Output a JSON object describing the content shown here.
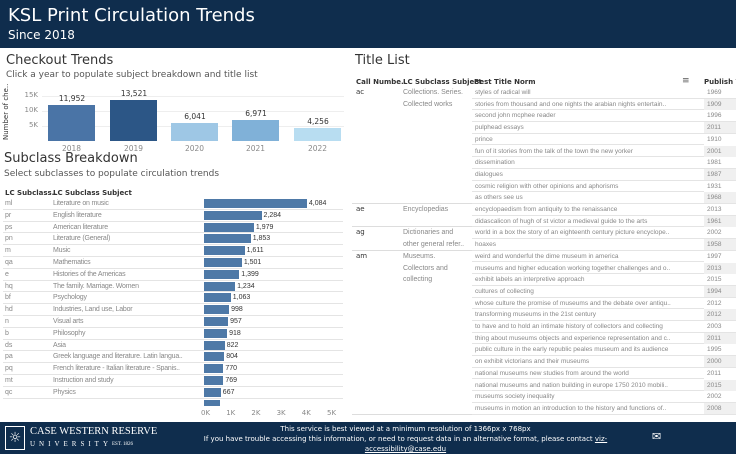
{
  "header": {
    "title": "KSL Print Circulation Trends",
    "subtitle": "Since 2018"
  },
  "checkout": {
    "title": "Checkout Trends",
    "subtitle": "Click a year to populate subject breakdown and title list"
  },
  "chart_data": [
    {
      "type": "bar",
      "title": "Checkout Trends",
      "ylabel": "Number of che..",
      "categories": [
        "2018",
        "2019",
        "2020",
        "2021",
        "2022"
      ],
      "values": [
        11952,
        13521,
        6041,
        6971,
        4256
      ],
      "value_labels": [
        "11,952",
        "13,521",
        "6,041",
        "6,971",
        "4,256"
      ],
      "colors": [
        "#4a74a6",
        "#2c5686",
        "#9ec7e5",
        "#80b1d8",
        "#b8ddf1"
      ],
      "yticks": [
        "5K",
        "10K",
        "15K"
      ],
      "ylim": [
        0,
        16000
      ]
    },
    {
      "type": "bar",
      "orientation": "horizontal",
      "title": "Subclass Breakdown",
      "xticks": [
        "0K",
        "1K",
        "2K",
        "3K",
        "4K",
        "5K"
      ],
      "xlim": [
        0,
        5000
      ],
      "columns": [
        "LC Subclass..",
        "LC Subclass Subject"
      ],
      "rows": [
        [
          "ml",
          "Literature on music",
          4084,
          "4,084"
        ],
        [
          "pr",
          "English literature",
          2284,
          "2,284"
        ],
        [
          "ps",
          "American literature",
          1979,
          "1,979"
        ],
        [
          "pn",
          "Literature (General)",
          1853,
          "1,853"
        ],
        [
          "m",
          "Music",
          1611,
          "1,611"
        ],
        [
          "qa",
          "Mathematics",
          1501,
          "1,501"
        ],
        [
          "e",
          "Histories of the Americas",
          1399,
          "1,399"
        ],
        [
          "hq",
          "The family. Marriage. Women",
          1234,
          "1,234"
        ],
        [
          "bf",
          "Psychology",
          1063,
          "1,063"
        ],
        [
          "hd",
          "Industries, Land use, Labor",
          998,
          "998"
        ],
        [
          "n",
          "Visual arts",
          957,
          "957"
        ],
        [
          "b",
          "Philosophy",
          918,
          "918"
        ],
        [
          "ds",
          "Asia",
          822,
          "822"
        ],
        [
          "pa",
          "Greek language and literature. Latin langua..",
          804,
          "804"
        ],
        [
          "pq",
          "French literature - Italian literature - Spanis..",
          770,
          "770"
        ],
        [
          "mt",
          "Instruction and study",
          769,
          "769"
        ],
        [
          "qc",
          "Physics",
          667,
          "667"
        ]
      ]
    }
  ],
  "subclass": {
    "title": "Subclass Breakdown",
    "subtitle": "Select subclasses to populate circulation trends"
  },
  "titles": {
    "title": "Title List",
    "columns": [
      "Call Numbe..",
      "LC Subclass Subject",
      "Best Title Norm",
      "Publish Ye"
    ],
    "groups": [
      {
        "code": "ac",
        "subject": [
          "Collections.  Series.",
          "Collected works"
        ],
        "rows": [
          [
            "styles of radical will",
            "1969"
          ],
          [
            "stories from thousand and one nights the arabian nights entertain..",
            "1909"
          ],
          [
            "second john mcphee reader",
            "1996"
          ],
          [
            "pulphead essays",
            "2011"
          ],
          [
            "prince",
            "1910"
          ],
          [
            "fun of it stories from the talk of the town the new yorker",
            "2001"
          ],
          [
            "dissemination",
            "1981"
          ],
          [
            "dialogues",
            "1987"
          ],
          [
            "cosmic religion with other opinions and aphorisms",
            "1931"
          ],
          [
            "as others see us",
            "1968"
          ]
        ]
      },
      {
        "code": "ae",
        "subject": [
          "Encyclopedias"
        ],
        "rows": [
          [
            "encyclopaedism from antiquity to the renaissance",
            "2013"
          ],
          [
            "didascalicon of hugh of st victor a medieval guide to the arts",
            "1961"
          ]
        ]
      },
      {
        "code": "ag",
        "subject": [
          "Dictionaries and",
          "other general refer.."
        ],
        "rows": [
          [
            "world in a box the story of an eighteenth century picture encyclope..",
            "2002"
          ],
          [
            "hoaxes",
            "1958"
          ]
        ]
      },
      {
        "code": "am",
        "subject": [
          "Museums.",
          "Collectors and",
          "collecting"
        ],
        "rows": [
          [
            "weird and wonderful the dime museum in america",
            "1997"
          ],
          [
            "museums and higher education working together challenges and o..",
            "2013"
          ],
          [
            "exhibit labels an interpretive approach",
            "2015"
          ],
          [
            "cultures of collecting",
            "1994"
          ],
          [
            "whose culture the promise of museums and the debate over antiqu..",
            "2012"
          ],
          [
            "transforming museums in the 21st century",
            "2012"
          ],
          [
            "to have and to hold an intimate history of collectors and collecting",
            "2003"
          ],
          [
            "thing about museums objects and experience representation and c..",
            "2011"
          ],
          [
            "public culture in the early republic peales museum and its audience",
            "1995"
          ],
          [
            "on exhibit victorians and their museums",
            "2000"
          ],
          [
            "national museums new studies from around the world",
            "2011"
          ],
          [
            "national museums and nation building in europe 1750 2010 mobili..",
            "2015"
          ],
          [
            "museums society inequality",
            "2002"
          ],
          [
            "museums in motion an introduction to the history and functions of..",
            "2008"
          ]
        ]
      }
    ]
  },
  "footer": {
    "logo_line1": "CASE WESTERN RESERVE",
    "logo_line2": "UNIVERSITY",
    "logo_est": "EST. 1826",
    "line1": "This service is best viewed at a minimum resolution of 1366px x 768px",
    "line2": "If you have trouble accessing this information, or need to request data in an alternative format, please contact ",
    "link": "viz-accessibility@case.edu"
  }
}
